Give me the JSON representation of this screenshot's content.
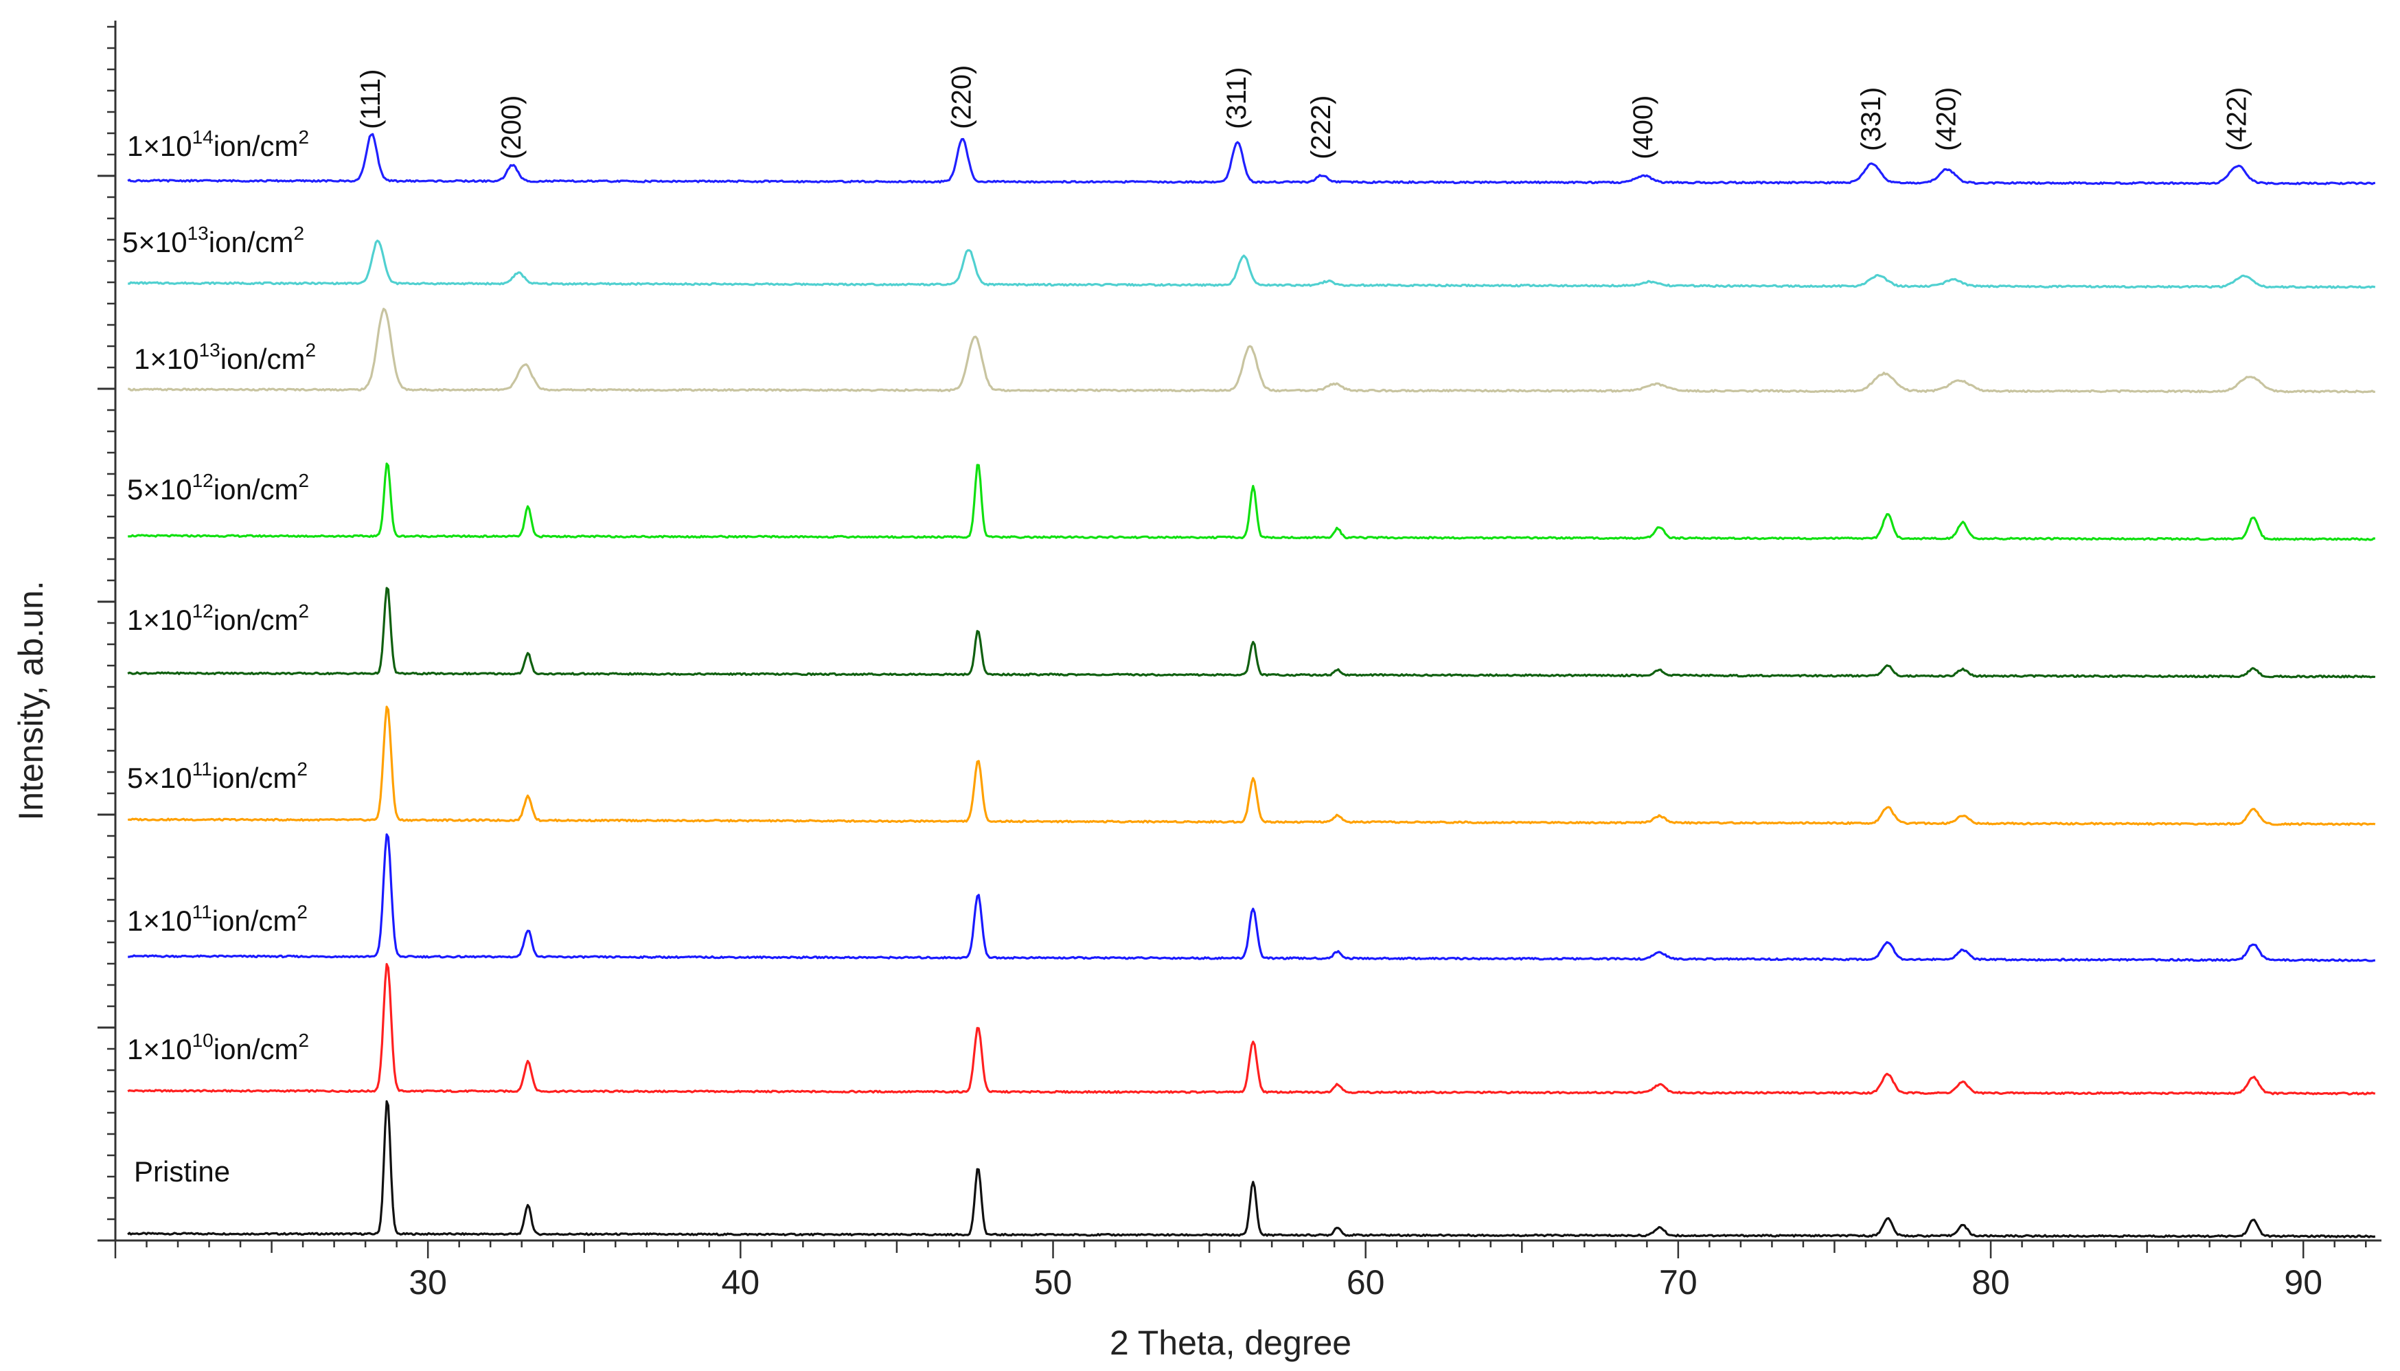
{
  "chart_data": {
    "type": "line",
    "title": "",
    "xlabel": "2 Theta, degree",
    "ylabel": "Intensity, ab.un.",
    "xlim": [
      20,
      92.5
    ],
    "x_ticks": [
      "30",
      "40",
      "50",
      "60",
      "70",
      "80",
      "90"
    ],
    "y_tick_labels": false,
    "grid": false,
    "layout": "stacked-offset",
    "peaks": [
      {
        "label": "(111)",
        "x": 28.7
      },
      {
        "label": "(200)",
        "x": 33.2
      },
      {
        "label": "(220)",
        "x": 47.6
      },
      {
        "label": "(311)",
        "x": 56.4
      },
      {
        "label": "(222)",
        "x": 59.1
      },
      {
        "label": "(400)",
        "x": 69.4
      },
      {
        "label": "(331)",
        "x": 76.7
      },
      {
        "label": "(420)",
        "x": 79.1
      },
      {
        "label": "(422)",
        "x": 88.4
      }
    ],
    "series": [
      {
        "base": "Pristine",
        "exp": "",
        "unit": "",
        "unit_exp": "",
        "color": "#111111",
        "shift": 0.0,
        "width": 0.1,
        "heights": [
          1.0,
          0.22,
          0.5,
          0.4,
          0.06,
          0.06,
          0.13,
          0.08,
          0.12
        ]
      },
      {
        "base": "1×10",
        "exp": "10",
        "unit": "ion/cm",
        "unit_exp": "2",
        "color": "#ff2020",
        "shift": 0.0,
        "width": 0.12,
        "heights": [
          0.95,
          0.22,
          0.48,
          0.38,
          0.06,
          0.06,
          0.14,
          0.08,
          0.12
        ]
      },
      {
        "base": "1×10",
        "exp": "11",
        "unit": "ion/cm",
        "unit_exp": "2",
        "color": "#1a1aff",
        "shift": 0.0,
        "width": 0.12,
        "heights": [
          0.92,
          0.2,
          0.47,
          0.37,
          0.05,
          0.05,
          0.13,
          0.07,
          0.12
        ]
      },
      {
        "base": "5×10",
        "exp": "11",
        "unit": "ion/cm",
        "unit_exp": "2",
        "color": "#ffa000",
        "shift": 0.0,
        "width": 0.12,
        "heights": [
          0.85,
          0.18,
          0.45,
          0.32,
          0.05,
          0.05,
          0.12,
          0.06,
          0.11
        ]
      },
      {
        "base": "1×10",
        "exp": "12",
        "unit": "ion/cm",
        "unit_exp": "2",
        "color": "#106010",
        "shift": 0.0,
        "width": 0.1,
        "heights": [
          0.65,
          0.15,
          0.33,
          0.25,
          0.04,
          0.04,
          0.08,
          0.05,
          0.06
        ]
      },
      {
        "base": "5×10",
        "exp": "12",
        "unit": "ion/cm",
        "unit_exp": "2",
        "color": "#10e010",
        "shift": 0.0,
        "width": 0.1,
        "heights": [
          0.55,
          0.22,
          0.55,
          0.38,
          0.07,
          0.08,
          0.18,
          0.12,
          0.16
        ]
      },
      {
        "base": "1×10",
        "exp": "13",
        "unit": "ion/cm",
        "unit_exp": "2",
        "color": "#c8c4a0",
        "shift": -0.1,
        "width": 0.22,
        "heights": [
          0.6,
          0.19,
          0.4,
          0.33,
          0.05,
          0.05,
          0.13,
          0.08,
          0.11
        ]
      },
      {
        "base": "5×10",
        "exp": "13",
        "unit": "ion/cm",
        "unit_exp": "2",
        "color": "#50d0d0",
        "shift": -0.3,
        "width": 0.18,
        "heights": [
          0.32,
          0.08,
          0.26,
          0.22,
          0.03,
          0.03,
          0.08,
          0.05,
          0.08
        ]
      },
      {
        "base": "1×10",
        "exp": "14",
        "unit": "ion/cm",
        "unit_exp": "2",
        "color": "#2020ff",
        "shift": -0.5,
        "width": 0.17,
        "heights": [
          0.35,
          0.12,
          0.32,
          0.3,
          0.05,
          0.05,
          0.14,
          0.1,
          0.13
        ]
      }
    ]
  }
}
